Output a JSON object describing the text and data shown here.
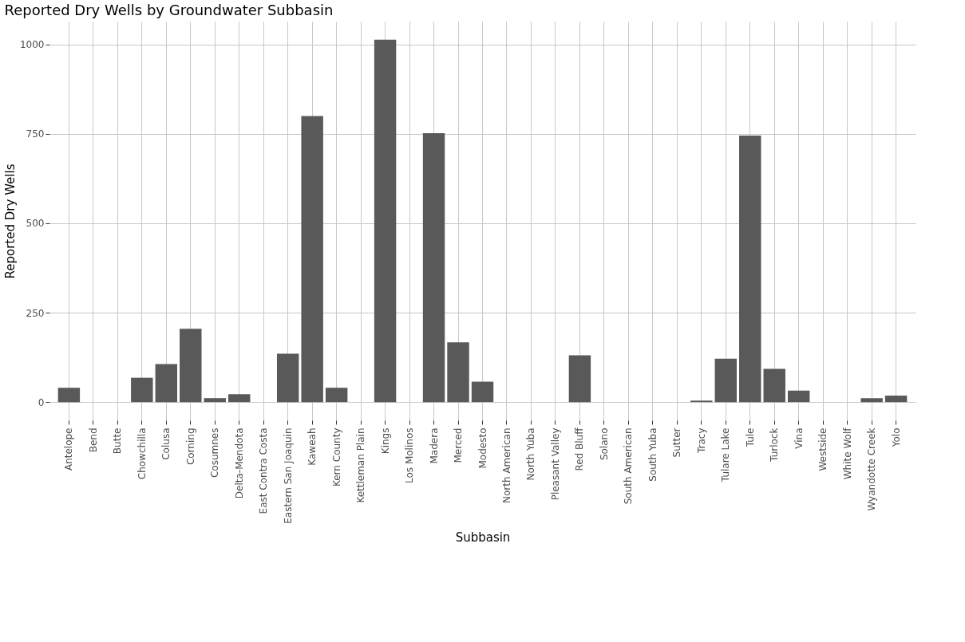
{
  "chart_data": {
    "type": "bar",
    "title": "Reported Dry Wells by Groundwater Subbasin",
    "xlabel": "Subbasin",
    "ylabel": "Reported Dry Wells",
    "categories": [
      "Antelope",
      "Bend",
      "Butte",
      "Chowchilla",
      "Colusa",
      "Corning",
      "Cosumnes",
      "Delta-Mendota",
      "East Contra Costa",
      "Eastern San Joaquin",
      "Kaweah",
      "Kern County",
      "Kettleman Plain",
      "Kings",
      "Los Molinos",
      "Madera",
      "Merced",
      "Modesto",
      "North American",
      "North Yuba",
      "Pleasant Valley",
      "Red Bluff",
      "Solano",
      "South American",
      "South Yuba",
      "Sutter",
      "Tracy",
      "Tulare Lake",
      "Tule",
      "Turlock",
      "Vina",
      "Westside",
      "White Wolf",
      "Wyandotte Creek",
      "Yolo"
    ],
    "values": [
      40,
      0,
      0,
      68,
      106,
      205,
      11,
      22,
      0,
      135,
      800,
      40,
      0,
      1013,
      0,
      752,
      167,
      57,
      0,
      0,
      0,
      131,
      0,
      0,
      0,
      0,
      4,
      121,
      745,
      93,
      32,
      0,
      0,
      11,
      18
    ],
    "color": "#595959",
    "ylim": [
      -51,
      1064
    ],
    "yticks": [
      0,
      250,
      500,
      750,
      1000
    ],
    "grid": true
  }
}
